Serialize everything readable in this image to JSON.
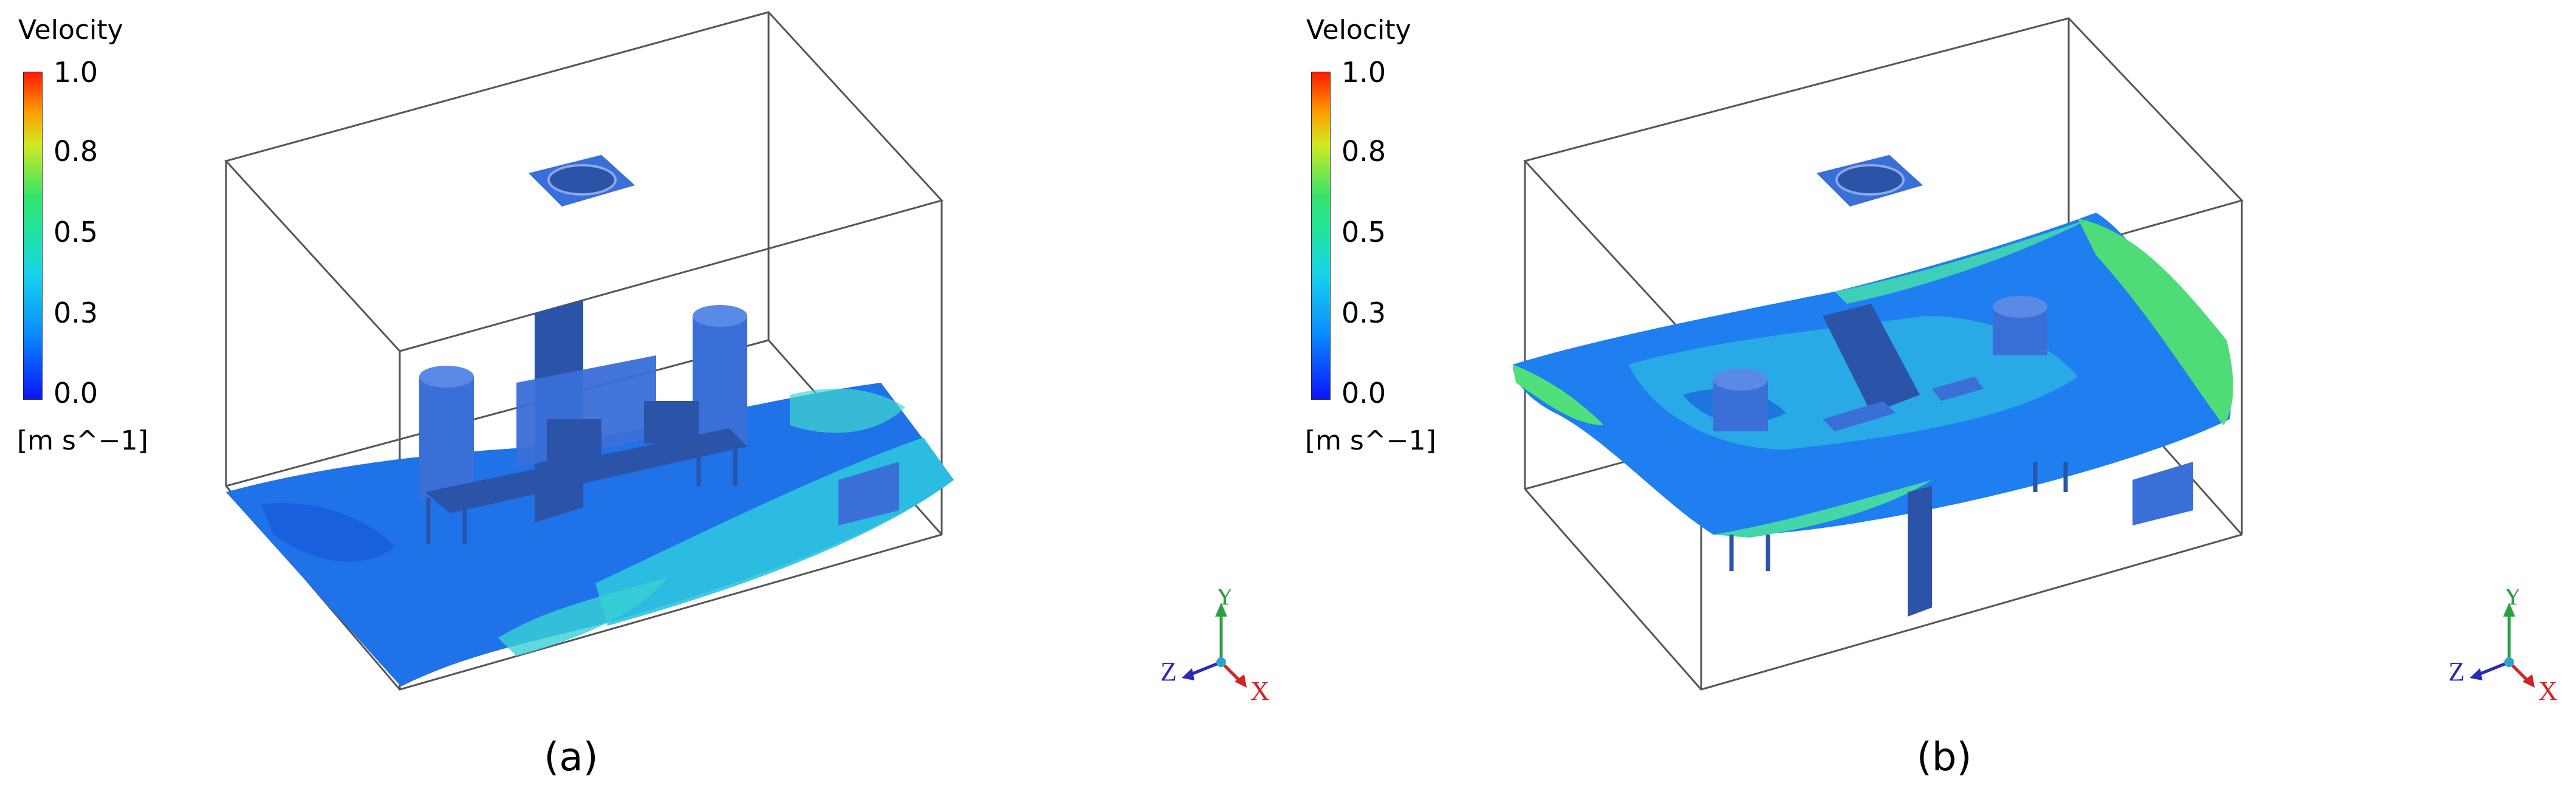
{
  "panels": [
    {
      "legend": {
        "title": "Velocity",
        "ticks": [
          "1.0",
          "0.8",
          "0.5",
          "0.3",
          "0.0"
        ],
        "units": "[m s^−1]",
        "colormap": [
          "#0a14ff",
          "#0a8cff",
          "#18d2ea",
          "#22e39a",
          "#35e36a",
          "#d2ea20",
          "#ff9a00",
          "#ff1a00"
        ]
      },
      "axes": {
        "y": "Y",
        "z": "Z",
        "x": "X"
      },
      "caption": "(a)"
    },
    {
      "legend": {
        "title": "Velocity",
        "ticks": [
          "1.0",
          "0.8",
          "0.5",
          "0.3",
          "0.0"
        ],
        "units": "[m s^−1]",
        "colormap": [
          "#0a14ff",
          "#0a8cff",
          "#18d2ea",
          "#22e39a",
          "#35e36a",
          "#d2ea20",
          "#ff9a00",
          "#ff1a00"
        ]
      },
      "axes": {
        "y": "Y",
        "z": "Z",
        "x": "X"
      },
      "caption": "(b)"
    }
  ],
  "colors": {
    "structure": "#3a6fd8",
    "structure_dark": "#2b53a8",
    "fluid_low": "#1e6fe6",
    "fluid_mid": "#33c7e0",
    "fluid_high": "#4fe07a",
    "axis_y": "#2ea043",
    "axis_z": "#2a2ab8",
    "axis_x": "#d42020"
  }
}
